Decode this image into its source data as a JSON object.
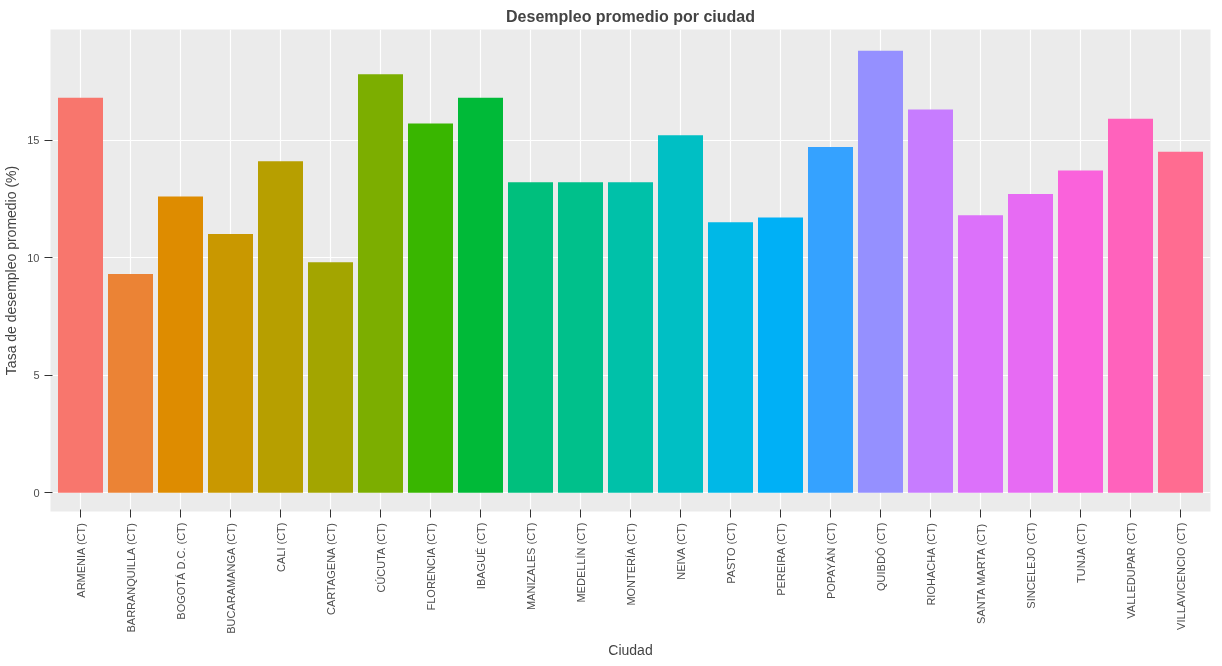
{
  "chart_data": {
    "type": "bar",
    "title": "Desempleo promedio por ciudad",
    "xlabel": "Ciudad",
    "ylabel": "Tasa de desempleo promedio (%)",
    "categories": [
      "ARMENIA (CT)",
      "BARRANQUILLA (CT)",
      "BOGOTÁ D.C. (CT)",
      "BUCARAMANGA (CT)",
      "CALI (CT)",
      "CARTAGENA (CT)",
      "CÚCUTA (CT)",
      "FLORENCIA (CT)",
      "IBAGUÉ (CT)",
      "MANIZALES (CT)",
      "MEDELLÍN (CT)",
      "MONTERÍA (CT)",
      "NEIVA (CT)",
      "PASTO (CT)",
      "PEREIRA (CT)",
      "POPAYÁN (CT)",
      "QUIBDÓ (CT)",
      "RIOHACHA (CT)",
      "SANTA MARTA (CT)",
      "SINCELEJO (CT)",
      "TUNJA (CT)",
      "VALLEDUPAR (CT)",
      "VILLAVICENCIO (CT)"
    ],
    "values": [
      16.8,
      9.3,
      12.6,
      11.0,
      14.1,
      9.8,
      17.8,
      15.7,
      16.8,
      13.2,
      13.2,
      13.2,
      15.2,
      11.5,
      11.7,
      14.7,
      18.8,
      16.3,
      11.8,
      12.7,
      13.7,
      15.9,
      14.5
    ],
    "colors": [
      "#f8766d",
      "#eb8335",
      "#de8c00",
      "#c99800",
      "#b79f00",
      "#a3a500",
      "#7cae00",
      "#39b600",
      "#00ba38",
      "#00bf7d",
      "#00c08b",
      "#00c1a9",
      "#00bfc4",
      "#00b8e7",
      "#00b0f6",
      "#35a2ff",
      "#9590ff",
      "#c77cff",
      "#dc71fa",
      "#e76bf3",
      "#fa62db",
      "#ff62bc",
      "#ff6c91"
    ],
    "ylim": [
      -0.8,
      19.7
    ],
    "yticks": [
      0,
      5,
      10,
      15
    ],
    "grid": true
  }
}
